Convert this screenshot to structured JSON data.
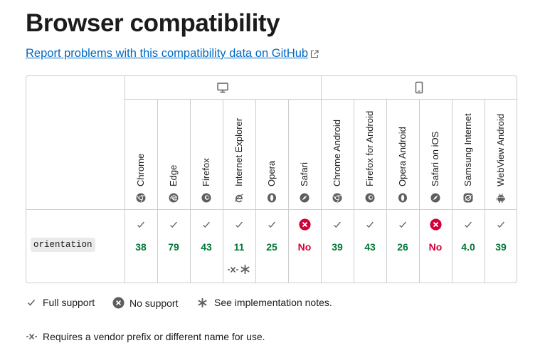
{
  "page": {
    "title": "Browser compatibility",
    "report_link": "Report problems with this compatibility data on GitHub"
  },
  "table": {
    "platforms": [
      {
        "name": "desktop",
        "icon": "desktop-icon"
      },
      {
        "name": "mobile",
        "icon": "mobile-icon"
      }
    ],
    "browsers": [
      {
        "name": "Chrome",
        "icon": "chrome-icon"
      },
      {
        "name": "Edge",
        "icon": "edge-icon"
      },
      {
        "name": "Firefox",
        "icon": "firefox-icon"
      },
      {
        "name": "Internet Explorer",
        "icon": "ie-icon"
      },
      {
        "name": "Opera",
        "icon": "opera-icon"
      },
      {
        "name": "Safari",
        "icon": "safari-icon"
      },
      {
        "name": "Chrome Android",
        "icon": "chrome-icon"
      },
      {
        "name": "Firefox for Android",
        "icon": "firefox-icon"
      },
      {
        "name": "Opera Android",
        "icon": "opera-icon"
      },
      {
        "name": "Safari on iOS",
        "icon": "safari-icon"
      },
      {
        "name": "Samsung Internet",
        "icon": "samsung-icon"
      },
      {
        "name": "WebView Android",
        "icon": "android-icon"
      }
    ],
    "feature": "orientation",
    "support": [
      {
        "version": "38",
        "supported": true
      },
      {
        "version": "79",
        "supported": true
      },
      {
        "version": "43",
        "supported": true
      },
      {
        "version": "11",
        "supported": true,
        "notes": true,
        "prefix": true
      },
      {
        "version": "25",
        "supported": true
      },
      {
        "version": "No",
        "supported": false
      },
      {
        "version": "39",
        "supported": true
      },
      {
        "version": "43",
        "supported": true
      },
      {
        "version": "26",
        "supported": true
      },
      {
        "version": "No",
        "supported": false
      },
      {
        "version": "4.0",
        "supported": true
      },
      {
        "version": "39",
        "supported": true
      }
    ]
  },
  "legend": {
    "full_support": "Full support",
    "no_support": "No support",
    "notes": "See implementation notes.",
    "prefix": "Requires a vendor prefix or different name for use."
  },
  "colors": {
    "supported": "#007936",
    "unsupported": "#d30038",
    "link": "#0069c2",
    "border": "#cdcdcd"
  }
}
